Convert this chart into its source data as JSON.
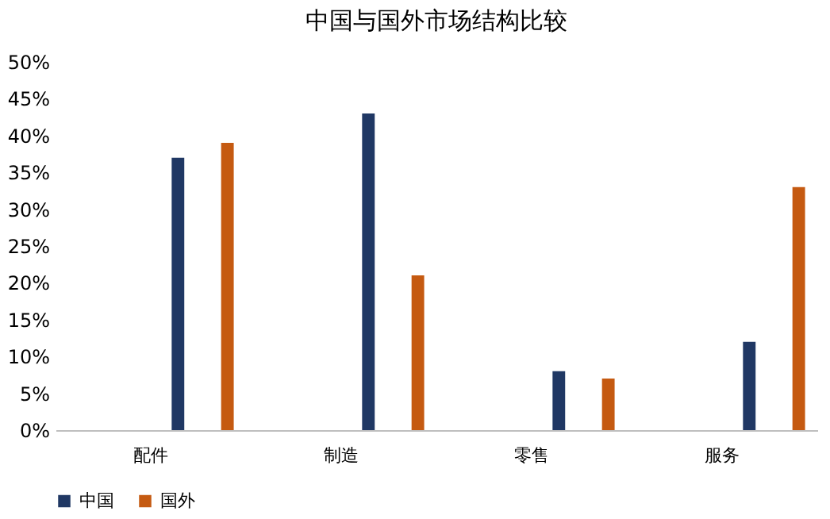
{
  "chart_data": {
    "type": "bar",
    "title": "中国与国外市场结构比较",
    "categories": [
      "配件",
      "制造",
      "零售",
      "服务"
    ],
    "series": [
      {
        "name": "中国",
        "color": "#203864",
        "values": [
          37,
          43,
          8,
          12
        ]
      },
      {
        "name": "国外",
        "color": "#c55a11",
        "values": [
          39,
          21,
          7,
          33
        ]
      }
    ],
    "ylim": [
      0,
      50
    ],
    "yticks": [
      {
        "value": 0,
        "label": "0%"
      },
      {
        "value": 5,
        "label": "5%"
      },
      {
        "value": 10,
        "label": "10%"
      },
      {
        "value": 15,
        "label": "15%"
      },
      {
        "value": 20,
        "label": "20%"
      },
      {
        "value": 25,
        "label": "25%"
      },
      {
        "value": 30,
        "label": "30%"
      },
      {
        "value": 35,
        "label": "35%"
      },
      {
        "value": 40,
        "label": "40%"
      },
      {
        "value": 45,
        "label": "45%"
      },
      {
        "value": 50,
        "label": "50%"
      }
    ],
    "grid": false,
    "legend": "bottom"
  }
}
